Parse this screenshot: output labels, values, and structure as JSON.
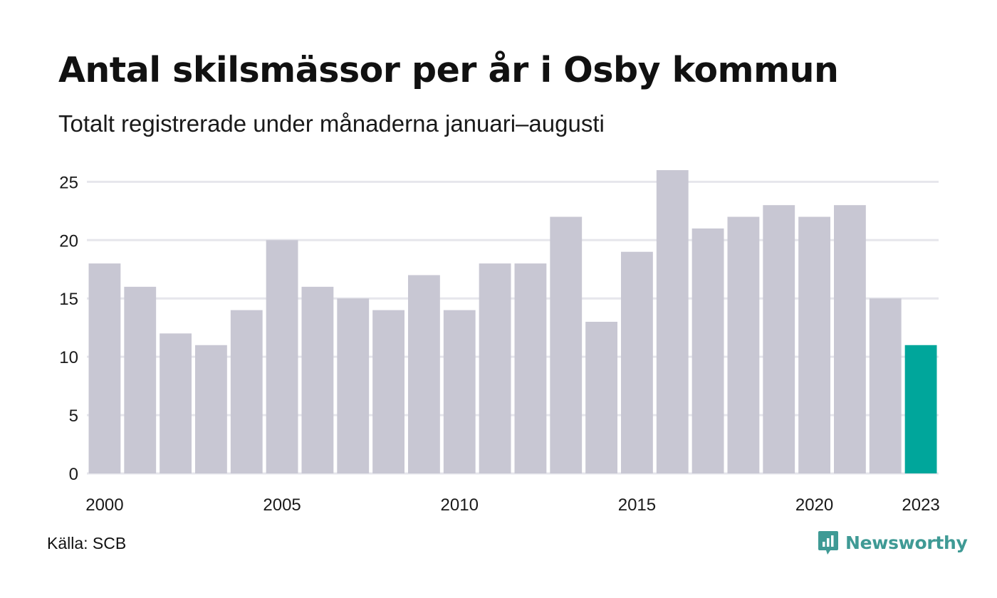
{
  "title": "Antal skilsmässor per år i Osby kommun",
  "subtitle": "Totalt registrerade under månaderna januari–augusti",
  "source": "Källa: SCB",
  "brand": {
    "name": "Newsworthy",
    "icon": "newsworthy-logo-icon",
    "color": "#3f9a95"
  },
  "colors": {
    "bar": "#c8c7d3",
    "highlight": "#00a69b",
    "grid": "#e6e6ec"
  },
  "chart_data": {
    "type": "bar",
    "categories": [
      "2000",
      "2001",
      "2002",
      "2003",
      "2004",
      "2005",
      "2006",
      "2007",
      "2008",
      "2009",
      "2010",
      "2011",
      "2012",
      "2013",
      "2014",
      "2015",
      "2016",
      "2017",
      "2018",
      "2019",
      "2020",
      "2021",
      "2022",
      "2023"
    ],
    "values": [
      18,
      16,
      12,
      11,
      14,
      20,
      16,
      15,
      14,
      17,
      14,
      18,
      18,
      22,
      13,
      19,
      26,
      21,
      22,
      23,
      22,
      23,
      15,
      11
    ],
    "highlight": "2023",
    "x_tick_labels": [
      "2000",
      "2005",
      "2010",
      "2015",
      "2020",
      "2023"
    ],
    "y_ticks": [
      0,
      5,
      10,
      15,
      20,
      25
    ],
    "ylim": [
      0,
      26
    ],
    "grid": true,
    "legend": "none"
  }
}
